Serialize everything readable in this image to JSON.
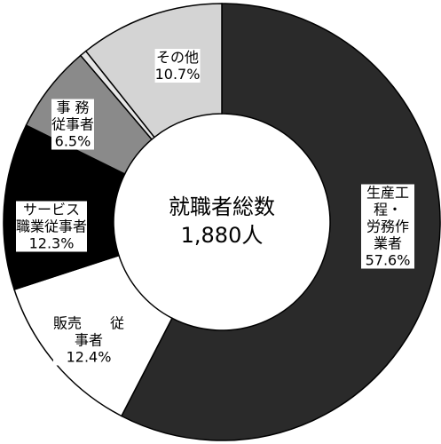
{
  "chart_data": {
    "type": "donut",
    "categories": [
      "生産工程・\n労務作業者",
      "販売　　従\n事者",
      "サービス\n職業従事者",
      "事 務\n従事者",
      null,
      "その他"
    ],
    "values": [
      57.6,
      12.4,
      12.3,
      6.5,
      0.5,
      10.7
    ],
    "value_labels": [
      "57.6%",
      "12.4%",
      "12.3%",
      "6.5%",
      null,
      "10.7%"
    ],
    "colors": [
      "#2a2a2a",
      "#ffffff",
      "#000000",
      "#8a8a8a",
      "#e6e6e6",
      "#d4d4d4"
    ],
    "annotations": [
      "就職者総数",
      "1,880人"
    ]
  }
}
